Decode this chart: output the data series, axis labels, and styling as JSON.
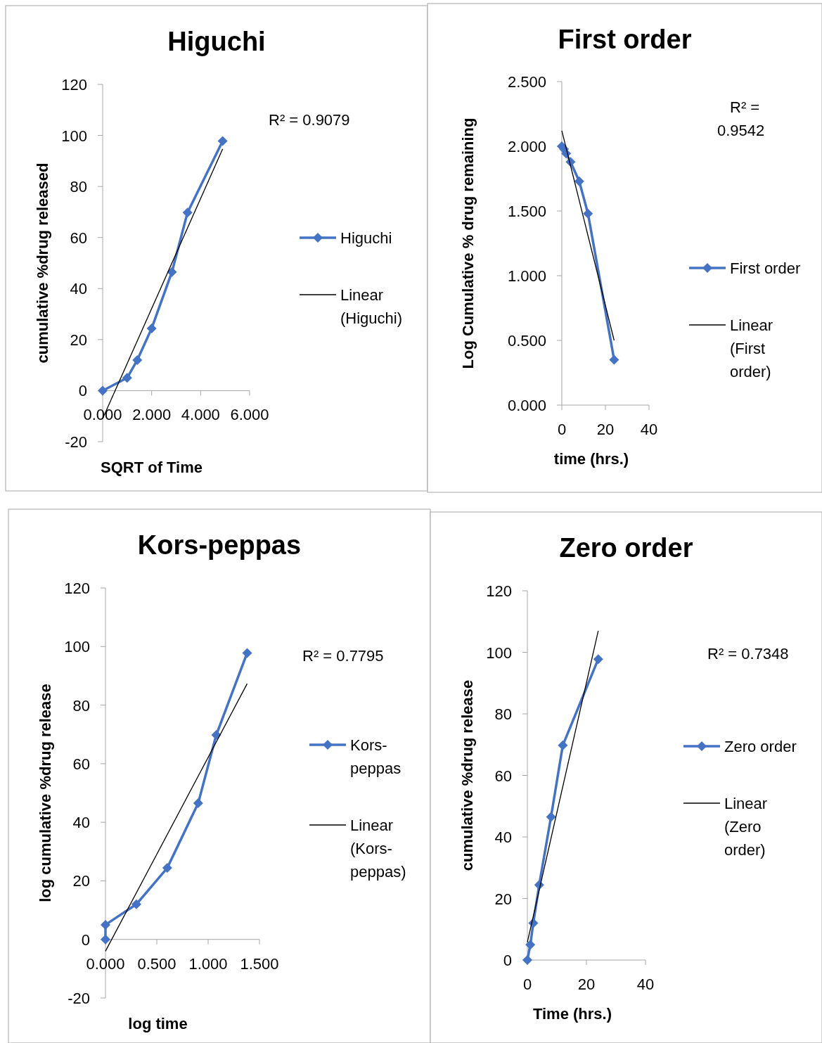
{
  "chart_data": [
    {
      "type": "line",
      "title": "Higuchi",
      "xlabel": "SQRT of Time",
      "ylabel": "cumulative %drug released",
      "xlim": [
        0,
        6
      ],
      "xticks": [
        {
          "value": 0,
          "label": "0.000"
        },
        {
          "value": 2,
          "label": "2.000"
        },
        {
          "value": 4,
          "label": "4.000"
        },
        {
          "value": 6,
          "label": "6.000"
        }
      ],
      "ylim": [
        -20,
        120
      ],
      "yticks": [
        -20,
        0,
        20,
        40,
        60,
        80,
        100,
        120
      ],
      "grid": false,
      "legend": "right",
      "annotations": [
        "R² = 0.9079"
      ],
      "series": [
        {
          "name": "Higuchi",
          "color": "#4472c4",
          "marker": "diamond",
          "x": [
            0,
            1,
            1.414,
            2,
            2.828,
            3.464,
            4.899
          ],
          "values": [
            0,
            5,
            12,
            24.4,
            46.5,
            69.8,
            97.8
          ]
        },
        {
          "name": "Linear (Higuchi)",
          "color": "#000000",
          "marker": "none",
          "x": [
            0,
            4.899
          ],
          "values": [
            -11,
            94.7
          ]
        }
      ]
    },
    {
      "type": "line",
      "title": "First order",
      "xlabel": "time (hrs.)",
      "ylabel": "Log Cumulative % drug remaining",
      "xlim": [
        0,
        40
      ],
      "xticks": [
        0,
        20,
        40
      ],
      "ylim": [
        0,
        2.5
      ],
      "yticks": [
        {
          "value": 0,
          "label": "0.000"
        },
        {
          "value": 0.5,
          "label": "0.500"
        },
        {
          "value": 1,
          "label": "1.000"
        },
        {
          "value": 1.5,
          "label": "1.500"
        },
        {
          "value": 2,
          "label": "2.000"
        },
        {
          "value": 2.5,
          "label": "2.500"
        }
      ],
      "grid": false,
      "legend": "right",
      "annotations": [
        "R² = 0.9542"
      ],
      "series": [
        {
          "name": "First order",
          "color": "#4472c4",
          "marker": "diamond",
          "x": [
            0,
            1,
            2,
            4,
            8,
            12,
            24
          ],
          "values": [
            2.0,
            1.978,
            1.944,
            1.879,
            1.729,
            1.48,
            0.35
          ]
        },
        {
          "name": "Linear (First order)",
          "color": "#000000",
          "marker": "none",
          "x": [
            0,
            24
          ],
          "values": [
            2.12,
            0.5
          ]
        }
      ]
    },
    {
      "type": "line",
      "title": "Kors-peppas",
      "xlabel": "log time",
      "ylabel": "log cumulative %drug release",
      "xlim": [
        0,
        1.5
      ],
      "xticks": [
        {
          "value": 0,
          "label": "0.000"
        },
        {
          "value": 0.5,
          "label": "0.500"
        },
        {
          "value": 1,
          "label": "1.000"
        },
        {
          "value": 1.5,
          "label": "1.500"
        }
      ],
      "ylim": [
        -20,
        120
      ],
      "yticks": [
        -20,
        0,
        20,
        40,
        60,
        80,
        100,
        120
      ],
      "grid": false,
      "legend": "right",
      "annotations": [
        "R² = 0.7795"
      ],
      "series": [
        {
          "name": "Kors-peppas",
          "color": "#4472c4",
          "marker": "diamond",
          "x": [
            0,
            0,
            0.301,
            0.602,
            0.903,
            1.079,
            1.38
          ],
          "values": [
            0,
            5,
            12,
            24.4,
            46.5,
            69.8,
            97.8
          ]
        },
        {
          "name": "Linear (Kors-peppas)",
          "color": "#000000",
          "marker": "none",
          "x": [
            0,
            1.38
          ],
          "values": [
            -4,
            87.3
          ]
        }
      ]
    },
    {
      "type": "line",
      "title": "Zero order",
      "xlabel": "Time (hrs.)",
      "ylabel": "cumulative %drug release",
      "xlim": [
        0,
        40
      ],
      "xticks": [
        0,
        20,
        40
      ],
      "ylim": [
        0,
        120
      ],
      "yticks": [
        0,
        20,
        40,
        60,
        80,
        100,
        120
      ],
      "grid": false,
      "legend": "right",
      "annotations": [
        "R² = 0.7348"
      ],
      "series": [
        {
          "name": "Zero order",
          "color": "#4472c4",
          "marker": "diamond",
          "x": [
            0,
            1,
            2,
            4,
            8,
            12,
            24
          ],
          "values": [
            0,
            5,
            12,
            24.4,
            46.5,
            69.8,
            97.8
          ]
        },
        {
          "name": "Linear (Zero order)",
          "color": "#000000",
          "marker": "none",
          "x": [
            0,
            24
          ],
          "values": [
            5.8,
            107
          ]
        }
      ]
    }
  ]
}
